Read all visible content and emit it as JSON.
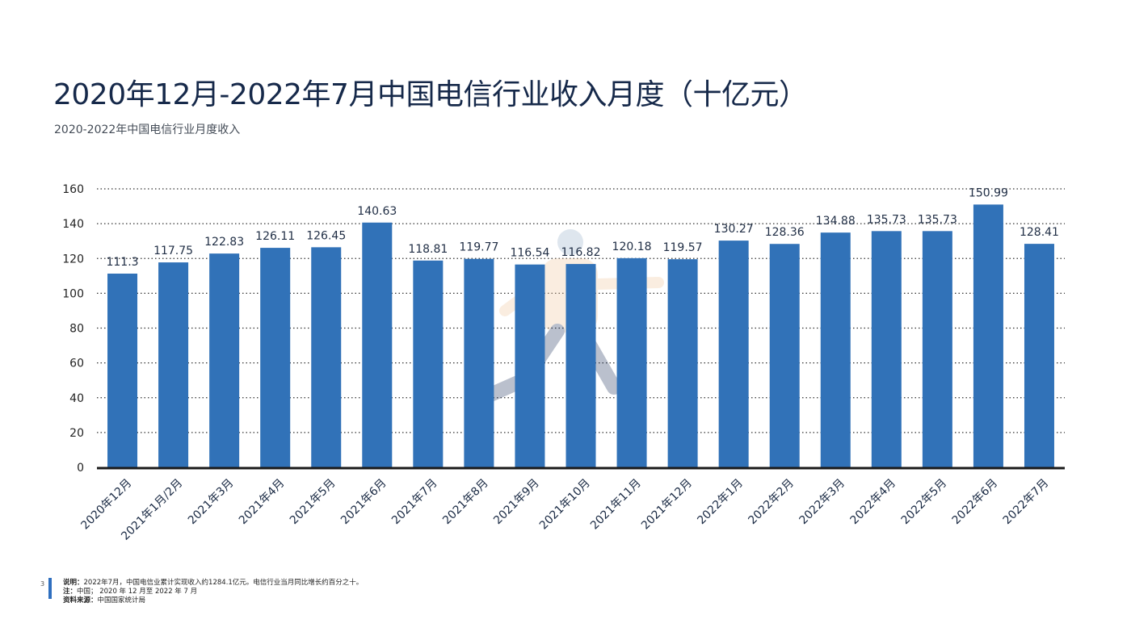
{
  "page": {
    "title": "2020年12月-2022年7月中国电信行业收入月度（十亿元）",
    "subtitle": "2020-2022年中国电信行业月度收入",
    "page_number": "3",
    "notes": {
      "explain_label": "说明：",
      "explain_text": "2022年7月，中国电信业累计实现收入约1284.1亿元。电信行业当月同比增长约百分之十。",
      "note_label": "注：",
      "note_text": "中国； 2020 年 12 月至 2022 年 7 月",
      "source_label": "资料来源：",
      "source_text": "中国国家统计局"
    }
  },
  "chart_data": {
    "type": "bar",
    "title": "",
    "xlabel": "",
    "ylabel": "",
    "ylim": [
      0,
      160
    ],
    "yticks": [
      0,
      20,
      40,
      60,
      80,
      100,
      120,
      140,
      160
    ],
    "grid": true,
    "bar_color": "#3172b8",
    "categories": [
      "2020年12月",
      "2021年1月/2月",
      "2021年3月",
      "2021年4月",
      "2021年5月",
      "2021年6月",
      "2021年7月",
      "2021年8月",
      "2021年9月",
      "2021年10月",
      "2021年11月",
      "2021年12月",
      "2022年1月",
      "2022年2月",
      "2022年3月",
      "2022年4月",
      "2022年5月",
      "2022年6月",
      "2022年7月"
    ],
    "values": [
      111.3,
      117.75,
      122.83,
      126.11,
      126.45,
      140.63,
      118.81,
      119.77,
      116.54,
      116.82,
      120.18,
      119.57,
      130.27,
      128.36,
      134.88,
      135.73,
      135.73,
      150.99,
      128.41
    ],
    "value_labels": [
      "111.3",
      "117.75",
      "122.83",
      "126.11",
      "126.45",
      "140.63",
      "118.81",
      "119.77",
      "116.54",
      "116.82",
      "120.18",
      "119.57",
      "130.27",
      "128.36",
      "134.88",
      "135.73",
      "135.73",
      "150.99",
      "128.41"
    ]
  }
}
